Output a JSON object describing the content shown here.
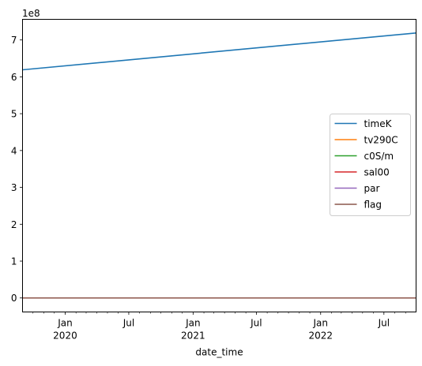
{
  "chart_data": {
    "type": "line",
    "xlabel": "date_time",
    "ylabel": "",
    "y_exponent_label": "1e8",
    "x_range": [
      "2019-09-01",
      "2022-10-01"
    ],
    "ylim": [
      -0.38,
      7.56
    ],
    "yticks": [
      {
        "value": 0,
        "label": "0"
      },
      {
        "value": 1,
        "label": "1"
      },
      {
        "value": 2,
        "label": "2"
      },
      {
        "value": 3,
        "label": "3"
      },
      {
        "value": 4,
        "label": "4"
      },
      {
        "value": 5,
        "label": "5"
      },
      {
        "value": 6,
        "label": "6"
      },
      {
        "value": 7,
        "label": "7"
      }
    ],
    "xticks_major": [
      {
        "date": "2020-01-01",
        "label": "Jan",
        "sublabel": "2020"
      },
      {
        "date": "2020-07-01",
        "label": "Jul",
        "sublabel": ""
      },
      {
        "date": "2021-01-01",
        "label": "Jan",
        "sublabel": "2021"
      },
      {
        "date": "2021-07-01",
        "label": "Jul",
        "sublabel": ""
      },
      {
        "date": "2022-01-01",
        "label": "Jan",
        "sublabel": "2022"
      },
      {
        "date": "2022-07-01",
        "label": "Jul",
        "sublabel": ""
      }
    ],
    "xticks_minor_months": [
      "2019-10-01",
      "2019-11-01",
      "2019-12-01",
      "2020-02-01",
      "2020-03-01",
      "2020-04-01",
      "2020-05-01",
      "2020-06-01",
      "2020-08-01",
      "2020-09-01",
      "2020-10-01",
      "2020-11-01",
      "2020-12-01",
      "2021-02-01",
      "2021-03-01",
      "2021-04-01",
      "2021-05-01",
      "2021-06-01",
      "2021-08-01",
      "2021-09-01",
      "2021-10-01",
      "2021-11-01",
      "2021-12-01",
      "2022-02-01",
      "2022-03-01",
      "2022-04-01",
      "2022-05-01",
      "2022-06-01",
      "2022-08-01",
      "2022-09-01"
    ],
    "grid": false,
    "legend_position": "center-right",
    "series": [
      {
        "name": "timeK",
        "color": "#1f77b4",
        "x": [
          "2019-09-01",
          "2022-10-01"
        ],
        "values": [
          6.19,
          7.19
        ]
      },
      {
        "name": "tv290C",
        "color": "#ff7f0e",
        "x": [
          "2019-09-01",
          "2022-10-01"
        ],
        "values": [
          0,
          0
        ]
      },
      {
        "name": "c0S/m",
        "color": "#2ca02c",
        "x": [
          "2019-09-01",
          "2022-10-01"
        ],
        "values": [
          0,
          0
        ]
      },
      {
        "name": "sal00",
        "color": "#d62728",
        "x": [
          "2019-09-01",
          "2022-10-01"
        ],
        "values": [
          0,
          0
        ]
      },
      {
        "name": "par",
        "color": "#9467bd",
        "x": [
          "2019-09-01",
          "2022-10-01"
        ],
        "values": [
          0,
          0
        ]
      },
      {
        "name": "flag",
        "color": "#8c564b",
        "x": [
          "2019-09-01",
          "2022-10-01"
        ],
        "values": [
          0,
          0
        ]
      }
    ]
  }
}
